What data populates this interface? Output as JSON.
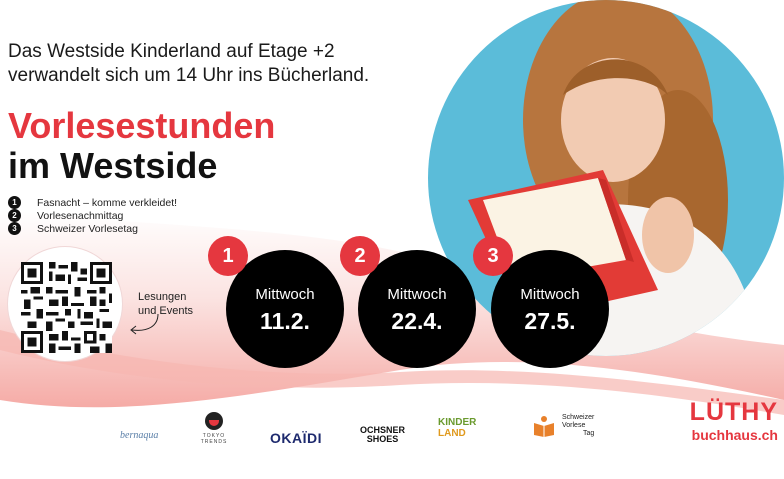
{
  "intro": {
    "line1": "Das Westside Kinderland auf Etage +2",
    "line2": "verwandelt sich um 14 Uhr ins Bücherland."
  },
  "headline": {
    "line1": "Vorlesestunden",
    "line2": "im Westside"
  },
  "events_list": [
    {
      "num": "1",
      "text": "Fasnacht – komme verkleidet!"
    },
    {
      "num": "2",
      "text": "Vorlesenachmittag"
    },
    {
      "num": "3",
      "text": "Schweizer Vorlesetag"
    }
  ],
  "qr": {
    "label_line1": "Lesungen",
    "label_line2": "und Events"
  },
  "dates": [
    {
      "num": "1",
      "day": "Mittwoch",
      "date": "11.2."
    },
    {
      "num": "2",
      "day": "Mittwoch",
      "date": "22.4."
    },
    {
      "num": "3",
      "day": "Mittwoch",
      "date": "27.5."
    }
  ],
  "partners": {
    "bernaqua": "bernaqua",
    "tokyo": "TOKYO TRENDS",
    "okaidi": "OKAÏDI",
    "ochsner_1": "OCHSNER",
    "ochsner_2": "SHOES",
    "kinder_1": "KINDER",
    "kinder_2": "LAND",
    "vorlese_1": "Schweizer",
    "vorlese_2": "Vorlese",
    "vorlese_3": "Tag"
  },
  "brand": {
    "name": "LÜTHY",
    "site": "buchhaus.ch"
  },
  "colors": {
    "accent_red": "#e5373f",
    "sky_blue": "#5bbcd9",
    "black": "#000000"
  }
}
